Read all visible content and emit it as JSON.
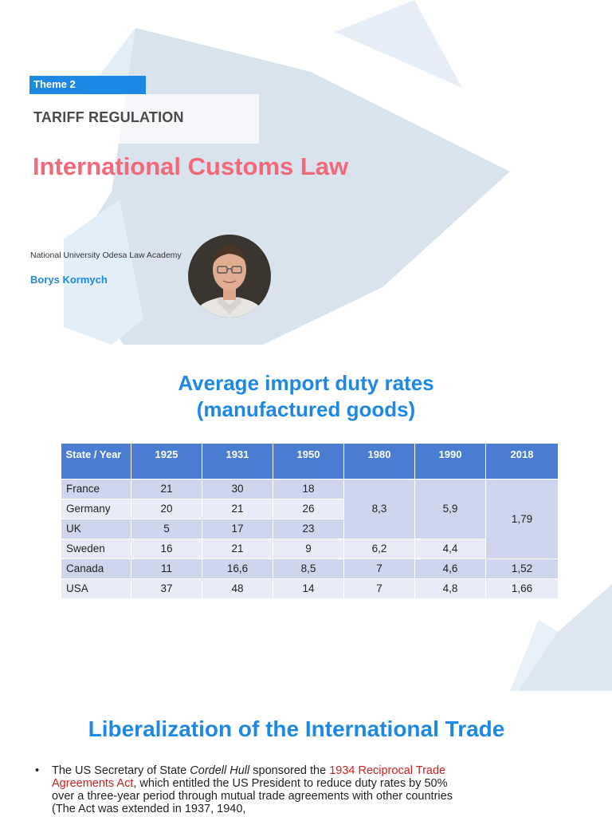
{
  "slide1": {
    "theme_label": "Theme 2",
    "section_title": "TARIFF REGULATION",
    "title": "International Customs Law",
    "university": "National University Odesa Law Academy",
    "author": "Borys Kormych",
    "colors": {
      "accent": "#1e88e5",
      "title": "#f2697a",
      "shape": "#d8e2ee"
    }
  },
  "slide2": {
    "title_line1": "Average import duty rates",
    "title_line2": "(manufactured goods)",
    "table": {
      "headers": [
        "State / Year",
        "1925",
        "1931",
        "1950",
        "1980",
        "1990",
        "2018"
      ],
      "rows": [
        {
          "country": "France",
          "y1925": "21",
          "y1931": "30",
          "y1950": "18"
        },
        {
          "country": "Germany",
          "y1925": "20",
          "y1931": "21",
          "y1950": "26"
        },
        {
          "country": "UK",
          "y1925": "5",
          "y1931": "17",
          "y1950": "23"
        },
        {
          "country": "Sweden",
          "y1925": "16",
          "y1931": "21",
          "y1950": "9",
          "y1980": "6,2",
          "y1990": "4,4"
        },
        {
          "country": "Canada",
          "y1925": "11",
          "y1931": "16,6",
          "y1950": "8,5",
          "y1980": "7",
          "y1990": "4,6",
          "y2018": "1,52"
        },
        {
          "country": "USA",
          "y1925": "37",
          "y1931": "48",
          "y1950": "14",
          "y1980": "7",
          "y1990": "4,8",
          "y2018": "1,66"
        }
      ],
      "merged_1980_first3": "8,3",
      "merged_1990_first3": "5,9",
      "merged_2018_first4": "1,79"
    },
    "colors": {
      "header": "#4a7cd2",
      "row_dark": "#ced6ee",
      "row_light": "#e9ecf6"
    }
  },
  "slide3": {
    "title": "Liberalization of the International Trade",
    "bullet": {
      "marker": "•",
      "p1": "The US Secretary of State ",
      "name": "Cordell Hull",
      "p2": " sponsored the ",
      "act": "1934 Reciprocal Trade Agreements Act",
      "p3": ", which entitled the US President to reduce duty rates by 50% over a three-year period through mutual trade agreements with other countries (The Act was extended in 1937, 1940,"
    }
  }
}
